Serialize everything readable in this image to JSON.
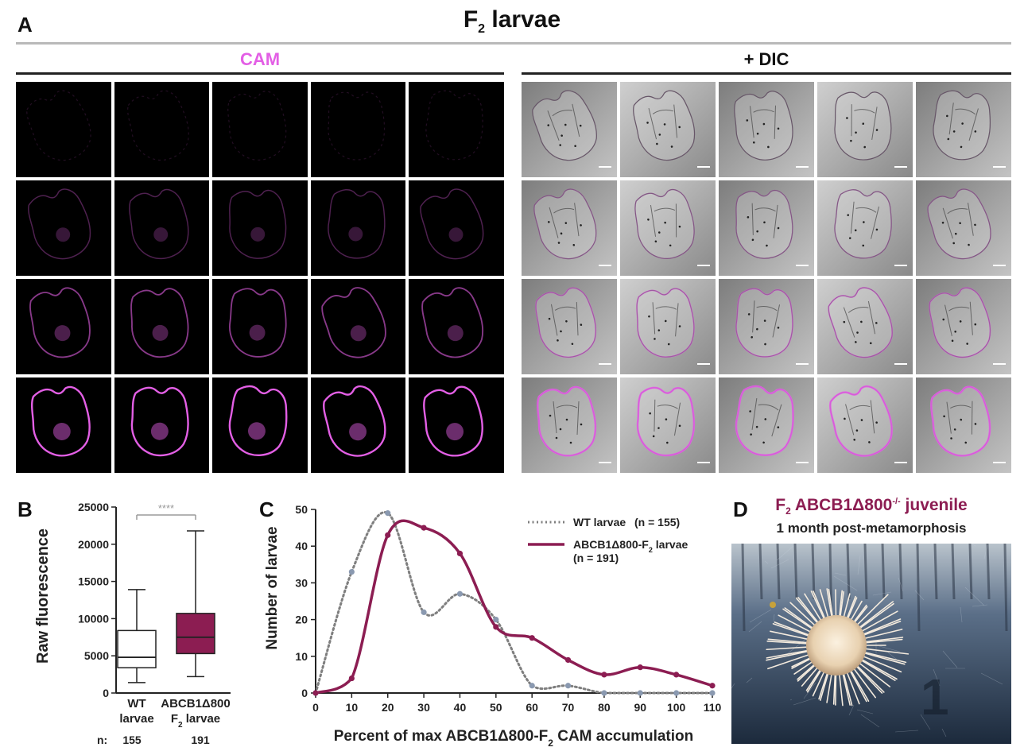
{
  "figure": {
    "panel_a": {
      "letter": "A",
      "title_main": "F",
      "title_sub": "2",
      "title_rest": " larvae"
    },
    "cam_title": "CAM",
    "dic_title": "+ DIC",
    "cam_color": "#e35fe5",
    "accent_color": "#8c1d52",
    "wt_color": "#7f7f7f",
    "point_color": "#8a99b0"
  },
  "panel_b": {
    "letter": "B",
    "ylabel": "Raw fluorescence",
    "significance": "****",
    "n_label": "n:",
    "groups": [
      {
        "line1": "WT",
        "line2": "larvae",
        "n": "155",
        "min": 1400,
        "q1": 3400,
        "median": 4800,
        "q3": 8400,
        "max": 13900,
        "fill": "#ffffff"
      },
      {
        "line1": "ABCB1Δ800",
        "line2": "F",
        "line2_sub": "2",
        "line2_rest": " larvae",
        "n": "191",
        "min": 2200,
        "q1": 5300,
        "median": 7500,
        "q3": 10700,
        "max": 21800,
        "fill": "#8c1d52"
      }
    ]
  },
  "panel_c": {
    "letter": "C"
  },
  "panel_d": {
    "letter": "D",
    "title_prefix": "F",
    "title_sub": "2",
    "title_main": " ABCB1Δ800",
    "title_sup": "-/-",
    "title_suffix": " juvenile",
    "subtitle": "1 month post-metamorphosis"
  },
  "chart_data": [
    {
      "type": "box",
      "ylabel": "Raw fluorescence",
      "ylim": [
        0,
        25000
      ],
      "yticks": [
        0,
        5000,
        10000,
        15000,
        20000,
        25000
      ],
      "categories": [
        "WT larvae",
        "ABCB1Δ800 F2 larvae"
      ],
      "series": [
        {
          "name": "WT larvae",
          "min": 1400,
          "q1": 3400,
          "median": 4800,
          "q3": 8400,
          "max": 13900
        },
        {
          "name": "ABCB1Δ800 F2 larvae",
          "min": 2200,
          "q1": 5300,
          "median": 7500,
          "q3": 10700,
          "max": 21800
        }
      ],
      "n": [
        155,
        191
      ],
      "annotation": "****"
    },
    {
      "type": "line",
      "xlabel": "Percent of max ABCB1Δ800-F",
      "xlabel_sub": "2",
      "xlabel_rest": " CAM accumulation",
      "ylabel": "Number of larvae",
      "xlim": [
        0,
        110
      ],
      "ylim": [
        0,
        50
      ],
      "xticks": [
        0,
        10,
        20,
        30,
        40,
        50,
        60,
        70,
        80,
        90,
        100,
        110
      ],
      "yticks": [
        0,
        10,
        20,
        30,
        40,
        50
      ],
      "legend_position": "top-right",
      "series": [
        {
          "name": "WT larvae",
          "n_label": "(n = 155)",
          "x": [
            0,
            10,
            20,
            30,
            40,
            50,
            60,
            70,
            80,
            90,
            100,
            110
          ],
          "y": [
            0,
            33,
            49,
            22,
            27,
            20,
            2,
            2,
            0,
            0,
            0,
            0
          ],
          "style": "dotted"
        },
        {
          "name": "ABCB1Δ800-F",
          "name_sub": "2",
          "name_rest": " larvae",
          "n_label": "(n = 191)",
          "x": [
            0,
            10,
            20,
            30,
            40,
            50,
            60,
            70,
            80,
            90,
            100,
            110
          ],
          "y": [
            0,
            4,
            43,
            45,
            38,
            18,
            15,
            9,
            5,
            7,
            5,
            2
          ],
          "style": "solid"
        }
      ]
    }
  ]
}
